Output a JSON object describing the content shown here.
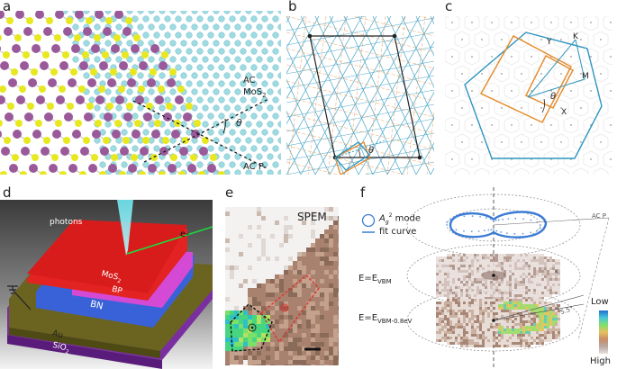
{
  "panels": {
    "a": {
      "letter": "a",
      "labels": [
        "AC",
        "MoS",
        "2",
        "AC P",
        "θ"
      ]
    },
    "b": {
      "letter": "b",
      "theta": "θ"
    },
    "c": {
      "letter": "c",
      "labels": [
        "Y",
        "K",
        "M",
        "X",
        "θ"
      ]
    },
    "d": {
      "letter": "d",
      "labels": {
        "photons": "photons",
        "electron": "e-",
        "mos2": "MoS",
        "mos2_sub": "2",
        "bp": "BP",
        "bn": "BN",
        "au": "Au",
        "sio2": "SiO",
        "sio2_sub": "2"
      }
    },
    "e": {
      "letter": "e",
      "title": "SPEM"
    },
    "f": {
      "letter": "f",
      "legend_mode": "A",
      "legend_mode_sub": "g",
      "legend_mode_sup": "2",
      "legend_mode_suffix": " mode",
      "legend_fit": "fit curve",
      "acp": "AC P",
      "e_vbm_prefix": "E=E",
      "e_vbm_sub": "VBM",
      "e_vbm2_prefix": "E=E",
      "e_vbm2_sub": "VBM-0.8eV",
      "k_label": "K",
      "angle_label": "5.5°",
      "colorbar_low": "Low",
      "colorbar_high": "High"
    }
  },
  "colors": {
    "purple_atom": "#9a5a9a",
    "yellow_atom": "#e8e820",
    "cyan_atom": "#8ed4dc",
    "blue": "#2e95bf",
    "orange": "#e48a2a",
    "red_layer": "#e32222"
  }
}
